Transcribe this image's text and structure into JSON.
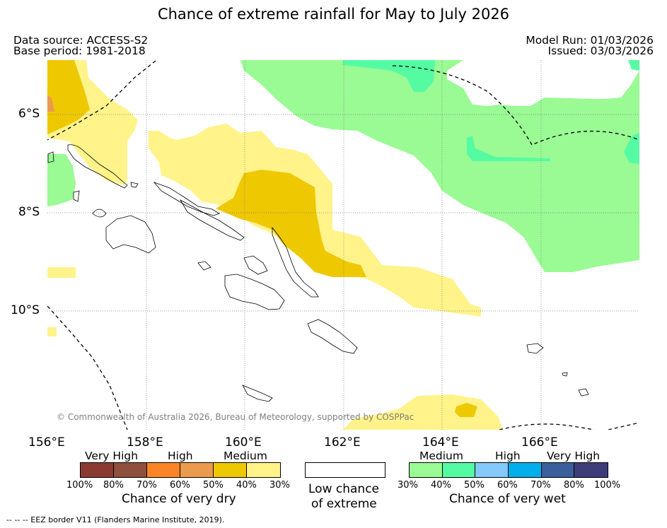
{
  "title": "Chance of extreme rainfall for May to July 2026",
  "header": {
    "data_source": "Data source: ACCESS-S2",
    "base_period": "Base period: 1981-2018",
    "model_run": "Model Run: 01/03/2026",
    "issued": "Issued: 03/03/2026"
  },
  "map": {
    "lat_labels": [
      "6°S",
      "8°S",
      "10°S"
    ],
    "lon_labels": [
      "156°E",
      "158°E",
      "160°E",
      "162°E",
      "164°E",
      "166°E"
    ],
    "copyright": "© Commonwealth of Australia 2026, Bureau of Meteorology, supported by COSPPac",
    "eez_note": "--  --  -- EEZ border V11 (Flanders Marine Institute, 2019)."
  },
  "legend": {
    "dry": {
      "titles": [
        "Very High",
        "High",
        "Medium"
      ],
      "percent_labels": [
        "100%",
        "80%",
        "70%",
        "60%",
        "50%",
        "40%",
        "30%"
      ],
      "colors": [
        "#8b3a32",
        "#8e4f3c",
        "#fb8526",
        "#ec9b4e",
        "#eec800",
        "#fff38a"
      ],
      "label": "Chance of very dry"
    },
    "low": {
      "label_line1": "Low chance",
      "label_line2": "of extreme",
      "color": "#ffffff"
    },
    "wet": {
      "titles": [
        "Medium",
        "High",
        "Very High"
      ],
      "percent_labels": [
        "30%",
        "40%",
        "50%",
        "60%",
        "70%",
        "80%",
        "100%"
      ],
      "colors": [
        "#9afa94",
        "#55fba3",
        "#83cafa",
        "#00aeec",
        "#3a5f9a",
        "#3f3c7a"
      ],
      "label": "Chance of very wet"
    }
  }
}
